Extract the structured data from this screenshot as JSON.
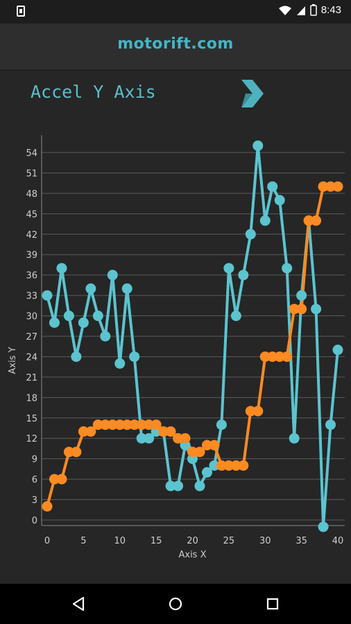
{
  "status_bar": {
    "time": "8:43",
    "icons": [
      "download-icon",
      "wifi-icon",
      "signal-icon",
      "battery-icon"
    ]
  },
  "header": {
    "brand": "motorift.com"
  },
  "page": {
    "title": "Accel Y Axis",
    "next_icon": "chevron-right-icon"
  },
  "colors": {
    "accent": "#43b6c6",
    "series_teal": "#5bc4cf",
    "series_orange": "#ff8a22",
    "background": "#262626"
  },
  "chart_data": {
    "type": "line",
    "xlabel": "Axis X",
    "ylabel": "Axis Y",
    "xlim": [
      0,
      40
    ],
    "ylim": [
      0,
      54
    ],
    "xticks": [
      0,
      5,
      10,
      15,
      20,
      25,
      30,
      35,
      40
    ],
    "yticks": [
      0,
      3,
      6,
      9,
      12,
      15,
      18,
      21,
      24,
      27,
      30,
      33,
      36,
      39,
      42,
      45,
      48,
      51,
      54
    ],
    "grid": true,
    "series": [
      {
        "color": "#5bc4cf",
        "x": [
          0,
          1,
          2,
          3,
          4,
          5,
          6,
          7,
          8,
          9,
          10,
          11,
          12,
          13,
          14,
          15,
          16,
          17,
          18,
          19,
          20,
          21,
          22,
          23,
          24,
          25,
          26,
          27,
          28,
          29,
          30,
          31,
          32,
          33,
          34,
          35,
          36,
          37,
          38,
          39,
          40
        ],
        "values": [
          33,
          29,
          37,
          30,
          24,
          29,
          34,
          30,
          27,
          36,
          23,
          34,
          24,
          12,
          12,
          13,
          13,
          5,
          5,
          11,
          9,
          5,
          7,
          8,
          14,
          37,
          30,
          36,
          42,
          55,
          44,
          49,
          47,
          37,
          12,
          33,
          44,
          31,
          -1,
          14,
          25
        ]
      },
      {
        "color": "#ff8a22",
        "x": [
          0,
          1,
          2,
          3,
          4,
          5,
          6,
          7,
          8,
          9,
          10,
          11,
          12,
          13,
          14,
          15,
          16,
          17,
          18,
          19,
          20,
          21,
          22,
          23,
          24,
          25,
          26,
          27,
          28,
          29,
          30,
          31,
          32,
          33,
          34,
          35,
          36,
          37,
          38,
          39,
          40
        ],
        "values": [
          2,
          6,
          6,
          10,
          10,
          13,
          13,
          14,
          14,
          14,
          14,
          14,
          14,
          14,
          14,
          14,
          13,
          13,
          12,
          12,
          10,
          10,
          11,
          11,
          8,
          8,
          8,
          8,
          16,
          16,
          24,
          24,
          24,
          24,
          31,
          31,
          44,
          44,
          49,
          49,
          49
        ]
      }
    ]
  }
}
